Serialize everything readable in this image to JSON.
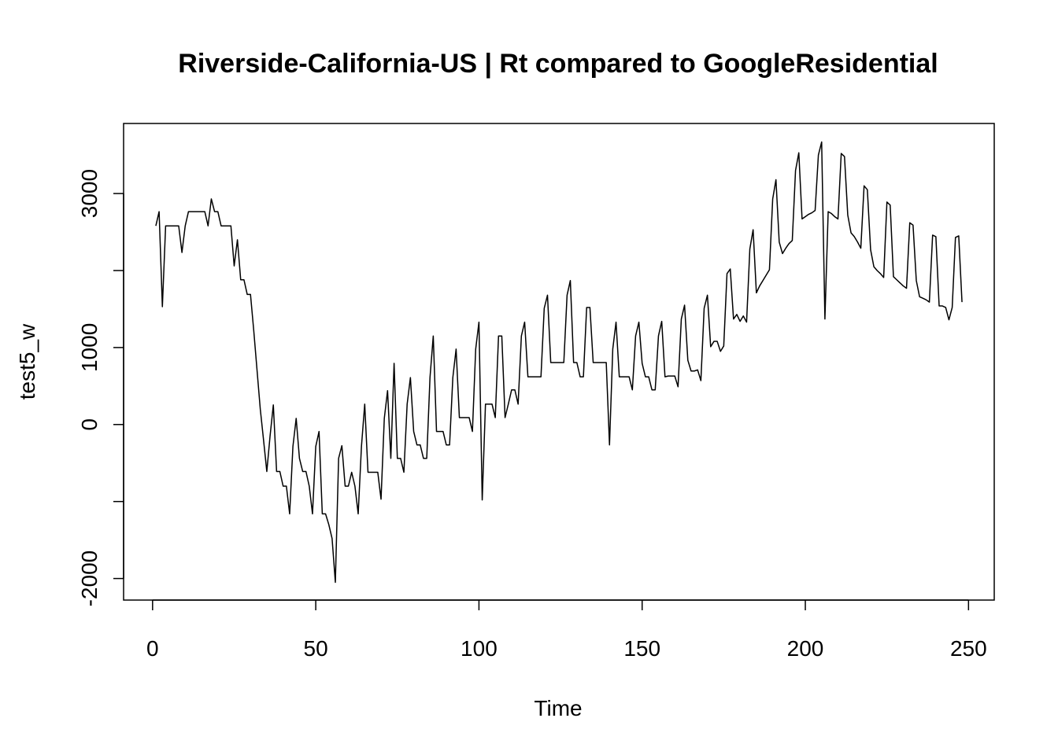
{
  "chart_data": {
    "type": "line",
    "title": "Riverside-California-US | Rt compared to GoogleResidential",
    "xlabel": "Time",
    "ylabel": "test5_w",
    "color": "#000000",
    "x": [
      1,
      2,
      3,
      4,
      5,
      6,
      7,
      8,
      9,
      10,
      11,
      12,
      13,
      14,
      15,
      16,
      17,
      18,
      19,
      20,
      21,
      22,
      23,
      24,
      25,
      26,
      27,
      28,
      29,
      30,
      31,
      32,
      33,
      34,
      35,
      36,
      37,
      38,
      39,
      40,
      41,
      42,
      43,
      44,
      45,
      46,
      47,
      48,
      49,
      50,
      51,
      52,
      53,
      54,
      55,
      56,
      57,
      58,
      59,
      60,
      61,
      62,
      63,
      64,
      65,
      66,
      67,
      68,
      69,
      70,
      71,
      72,
      73,
      74,
      75,
      76,
      77,
      78,
      79,
      80,
      81,
      82,
      83,
      84,
      85,
      86,
      87,
      88,
      89,
      90,
      91,
      92,
      93,
      94,
      95,
      96,
      97,
      98,
      99,
      100,
      101,
      102,
      103,
      104,
      105,
      106,
      107,
      108,
      109,
      110,
      111,
      112,
      113,
      114,
      115,
      116,
      117,
      118,
      119,
      120,
      121,
      122,
      123,
      124,
      125,
      126,
      127,
      128,
      129,
      130,
      131,
      132,
      133,
      134,
      135,
      136,
      137,
      138,
      139,
      140,
      141,
      142,
      143,
      144,
      145,
      146,
      147,
      148,
      149,
      150,
      151,
      152,
      153,
      154,
      155,
      156,
      157,
      158,
      159,
      160,
      161,
      162,
      163,
      164,
      165,
      166,
      167,
      168,
      169,
      170,
      171,
      172,
      173,
      174,
      175,
      176,
      177,
      178,
      179,
      180,
      181,
      182,
      183,
      184,
      185,
      186,
      187,
      188,
      189,
      190,
      191,
      192,
      193,
      194,
      195,
      196,
      197,
      198,
      199,
      200,
      201,
      202,
      203,
      204,
      205,
      206,
      207,
      208,
      209,
      210,
      211,
      212,
      213,
      214,
      215,
      216,
      217,
      218,
      219,
      220,
      221,
      222,
      223,
      224,
      225,
      226,
      227,
      228,
      229,
      230,
      231,
      232,
      233,
      234,
      235,
      236,
      237,
      238,
      239,
      240,
      241,
      242,
      243,
      244,
      245,
      246,
      247,
      248
    ],
    "values": [
      2580,
      2765,
      1530,
      2580,
      2580,
      2580,
      2580,
      2580,
      2235,
      2580,
      2765,
      2765,
      2765,
      2765,
      2765,
      2765,
      2580,
      2930,
      2765,
      2765,
      2580,
      2580,
      2580,
      2580,
      2060,
      2400,
      1880,
      1880,
      1690,
      1690,
      1220,
      710,
      200,
      -200,
      -610,
      -150,
      255,
      -610,
      -610,
      -800,
      -800,
      -1160,
      -285,
      80,
      -440,
      -610,
      -610,
      -800,
      -1160,
      -285,
      -90,
      -1160,
      -1160,
      -1300,
      -1480,
      -2050,
      -440,
      -275,
      -800,
      -800,
      -620,
      -800,
      -1160,
      -285,
      265,
      -620,
      -620,
      -620,
      -620,
      -970,
      80,
      440,
      -440,
      795,
      -440,
      -440,
      -620,
      265,
      610,
      -90,
      -265,
      -265,
      -440,
      -440,
      610,
      1150,
      -90,
      -90,
      -90,
      -265,
      -265,
      610,
      980,
      90,
      90,
      90,
      90,
      -90,
      980,
      1330,
      -980,
      265,
      265,
      265,
      90,
      1150,
      1150,
      90,
      265,
      450,
      450,
      265,
      1150,
      1330,
      620,
      620,
      620,
      620,
      620,
      1510,
      1680,
      805,
      805,
      805,
      805,
      805,
      1680,
      1870,
      805,
      805,
      620,
      620,
      1520,
      1520,
      805,
      805,
      805,
      805,
      805,
      -265,
      980,
      1330,
      620,
      620,
      620,
      620,
      450,
      1150,
      1330,
      795,
      620,
      620,
      450,
      450,
      1150,
      1340,
      620,
      630,
      630,
      630,
      490,
      1370,
      1550,
      835,
      695,
      695,
      710,
      570,
      1510,
      1680,
      1010,
      1080,
      1080,
      950,
      1020,
      1960,
      2020,
      1370,
      1430,
      1340,
      1410,
      1330,
      2280,
      2530,
      1710,
      1800,
      1870,
      1940,
      2010,
      2930,
      3180,
      2370,
      2220,
      2290,
      2350,
      2390,
      3300,
      3530,
      2670,
      2700,
      2730,
      2750,
      2780,
      3500,
      3670,
      1370,
      2765,
      2740,
      2700,
      2670,
      3520,
      3480,
      2720,
      2490,
      2440,
      2370,
      2290,
      3100,
      3050,
      2270,
      2050,
      2000,
      1960,
      1910,
      2890,
      2850,
      1920,
      1880,
      1840,
      1800,
      1770,
      2620,
      2590,
      1870,
      1660,
      1640,
      1620,
      1590,
      2460,
      2440,
      1540,
      1540,
      1520,
      1360,
      1520,
      2430,
      2450,
      1590
    ],
    "xlim": [
      -8.88,
      257.88
    ],
    "ylim": [
      -2280,
      3910
    ],
    "xticks": [
      0,
      50,
      100,
      150,
      200,
      250
    ],
    "yticks": [
      -2000,
      {
        "value": -1000,
        "label": null
      },
      0,
      1000,
      {
        "value": 2000,
        "label": null
      },
      3000
    ]
  }
}
